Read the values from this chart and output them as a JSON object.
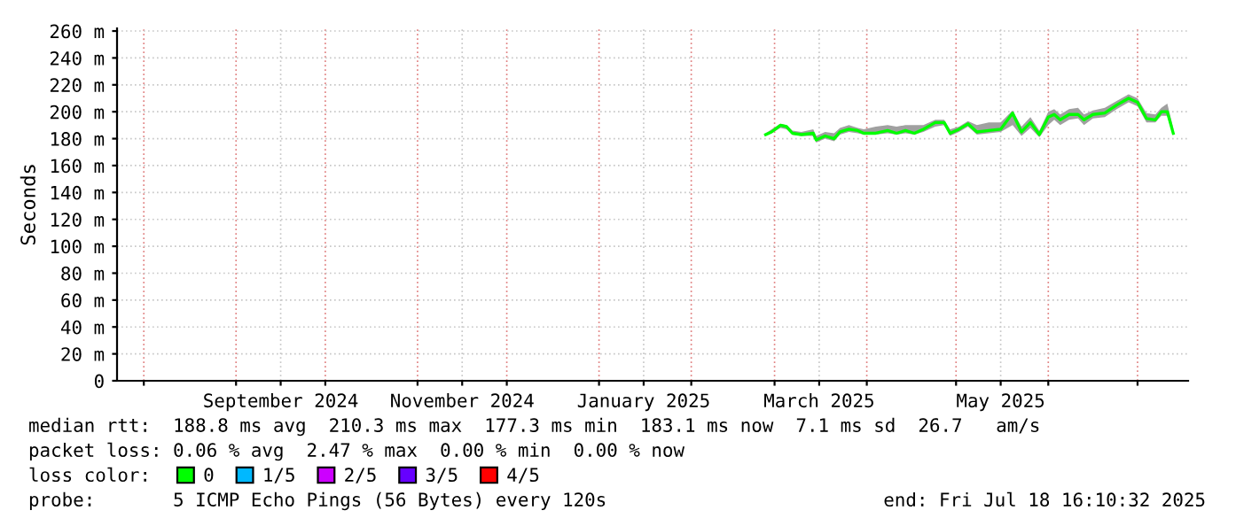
{
  "chart_data": {
    "type": "line",
    "ylabel": "Seconds",
    "legend_title": "loss color:",
    "legend": "bottom",
    "grid": true,
    "marker": "none",
    "line_style": "solid",
    "xlim": [
      "2024-07-23",
      "2025-07-18"
    ],
    "xticks": [
      {
        "value": "2024-08-01",
        "label": null
      },
      {
        "value": "2024-09-01",
        "label": null
      },
      {
        "value": "2024-09-16",
        "label": "September 2024"
      },
      {
        "value": "2024-10-01",
        "label": null
      },
      {
        "value": "2024-11-01",
        "label": null
      },
      {
        "value": "2024-11-16",
        "label": "November 2024"
      },
      {
        "value": "2024-12-01",
        "label": null
      },
      {
        "value": "2025-01-01",
        "label": null
      },
      {
        "value": "2025-01-16",
        "label": "January 2025"
      },
      {
        "value": "2025-02-01",
        "label": null
      },
      {
        "value": "2025-03-01",
        "label": null
      },
      {
        "value": "2025-03-16",
        "label": "March 2025"
      },
      {
        "value": "2025-04-01",
        "label": null
      },
      {
        "value": "2025-05-01",
        "label": null
      },
      {
        "value": "2025-05-16",
        "label": "May 2025"
      },
      {
        "value": "2025-06-01",
        "label": null
      },
      {
        "value": "2025-07-01",
        "label": null
      }
    ],
    "ylim": [
      0,
      262
    ],
    "yticks": [
      0,
      {
        "value": 20,
        "label": "20 m"
      },
      {
        "value": 40,
        "label": "40 m"
      },
      {
        "value": 60,
        "label": "60 m"
      },
      {
        "value": 80,
        "label": "80 m"
      },
      {
        "value": 100,
        "label": "100 m"
      },
      {
        "value": 120,
        "label": "120 m"
      },
      {
        "value": 140,
        "label": "140 m"
      },
      {
        "value": 160,
        "label": "160 m"
      },
      {
        "value": 180,
        "label": "180 m"
      },
      {
        "value": 200,
        "label": "200 m"
      },
      {
        "value": 220,
        "label": "220 m"
      },
      {
        "value": 240,
        "label": "240 m"
      },
      {
        "value": 260,
        "label": "260 m"
      }
    ],
    "x": [
      "2025-02-26",
      "2025-02-28",
      "2025-03-03",
      "2025-03-05",
      "2025-03-07",
      "2025-03-10",
      "2025-03-14",
      "2025-03-15",
      "2025-03-18",
      "2025-03-21",
      "2025-03-23",
      "2025-03-26",
      "2025-03-29",
      "2025-03-31",
      "2025-04-04",
      "2025-04-08",
      "2025-04-11",
      "2025-04-14",
      "2025-04-17",
      "2025-04-20",
      "2025-04-24",
      "2025-04-27",
      "2025-04-29",
      "2025-05-02",
      "2025-05-05",
      "2025-05-08",
      "2025-05-12",
      "2025-05-16",
      "2025-05-20",
      "2025-05-23",
      "2025-05-26",
      "2025-05-29",
      "2025-06-01",
      "2025-06-03",
      "2025-06-05",
      "2025-06-08",
      "2025-06-11",
      "2025-06-13",
      "2025-06-16",
      "2025-06-20",
      "2025-06-24",
      "2025-06-28",
      "2025-07-01",
      "2025-07-04",
      "2025-07-07",
      "2025-07-09",
      "2025-07-11",
      "2025-07-13"
    ],
    "series": [
      {
        "name": "0",
        "color": "#00ff00",
        "values": [
          183,
          185,
          190,
          189,
          184,
          183,
          184,
          179,
          182,
          180,
          185,
          187,
          186,
          184,
          184,
          186,
          184,
          186,
          184,
          187,
          192,
          192,
          184,
          187,
          191,
          185,
          186,
          187,
          199,
          185,
          192,
          183,
          196,
          198,
          194,
          198,
          198,
          194,
          198,
          199,
          205,
          210,
          207,
          195,
          194,
          200,
          200,
          184
        ],
        "lower": [
          182,
          184,
          188,
          187,
          183,
          182,
          182,
          177,
          180,
          178,
          183,
          185,
          184,
          183,
          183,
          184,
          183,
          184,
          183,
          185,
          189,
          190,
          182,
          185,
          189,
          183,
          184,
          185,
          190,
          182,
          188,
          181,
          190,
          194,
          190,
          194,
          195,
          190,
          195,
          196,
          202,
          207,
          204,
          192,
          192,
          197,
          197,
          182
        ],
        "upper": [
          184,
          187,
          191,
          190,
          186,
          185,
          187,
          182,
          185,
          184,
          188,
          190,
          188,
          187,
          189,
          190,
          189,
          190,
          190,
          190,
          194,
          194,
          187,
          189,
          193,
          190,
          192,
          192,
          201,
          189,
          196,
          186,
          200,
          202,
          198,
          202,
          203,
          198,
          201,
          203,
          208,
          213,
          210,
          199,
          198,
          203,
          206,
          188
        ]
      },
      {
        "name": "1/5",
        "color": "#00b8ff",
        "values": [
          null,
          null,
          null,
          null,
          null,
          null,
          null,
          null,
          null,
          null,
          null,
          null,
          null,
          null,
          null,
          null,
          null,
          null,
          null,
          null,
          null,
          null,
          null,
          null,
          null,
          null,
          null,
          null,
          null,
          null,
          null,
          null,
          null,
          null,
          null,
          null,
          null,
          null,
          null,
          null,
          null,
          null,
          null,
          null,
          null,
          null,
          null,
          null
        ]
      },
      {
        "name": "2/5",
        "color": "#cc00ff",
        "values": [
          null,
          null,
          null,
          null,
          null,
          null,
          null,
          null,
          null,
          null,
          null,
          null,
          null,
          null,
          null,
          null,
          null,
          null,
          null,
          null,
          null,
          null,
          null,
          null,
          null,
          null,
          null,
          null,
          null,
          null,
          null,
          null,
          null,
          null,
          null,
          null,
          null,
          null,
          null,
          null,
          null,
          null,
          null,
          null,
          null,
          null,
          null,
          null
        ]
      },
      {
        "name": "3/5",
        "color": "#6600ff",
        "values": [
          null,
          null,
          null,
          null,
          null,
          null,
          null,
          null,
          null,
          null,
          null,
          null,
          null,
          null,
          null,
          null,
          null,
          null,
          null,
          null,
          null,
          null,
          null,
          null,
          null,
          null,
          null,
          null,
          null,
          null,
          null,
          null,
          null,
          null,
          null,
          null,
          null,
          null,
          null,
          null,
          null,
          null,
          null,
          null,
          null,
          null,
          null,
          null
        ]
      },
      {
        "name": "4/5",
        "color": "#ff0000",
        "values": [
          null,
          null,
          null,
          null,
          null,
          null,
          null,
          null,
          null,
          null,
          null,
          null,
          null,
          null,
          null,
          null,
          null,
          null,
          null,
          null,
          null,
          null,
          null,
          null,
          null,
          null,
          null,
          null,
          null,
          null,
          null,
          null,
          null,
          null,
          null,
          null,
          null,
          null,
          null,
          null,
          null,
          null,
          null,
          null,
          null,
          null,
          null,
          null
        ]
      }
    ],
    "annotations": [
      "median rtt:  188.8 ms avg  210.3 ms max  177.3 ms min  183.1 ms now  7.1 ms sd  26.7   am/s",
      "packet loss: 0.06 % avg  2.47 % max  0.00 % min  0.00 % now",
      "probe:       5 ICMP Echo Pings (56 Bytes) every 120s",
      "end: Fri Jul 18 16:10:32 2025"
    ]
  }
}
